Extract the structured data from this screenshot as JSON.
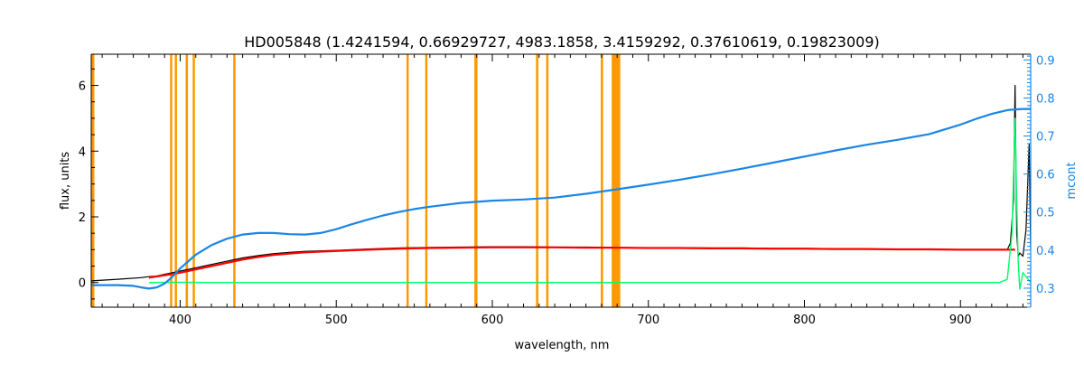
{
  "chart_data": {
    "type": "line",
    "title": "HD005848    (1.4241594, 0.66929727, 4983.1858, 3.4159292, 0.37610619, 0.19823009)",
    "xlabel": "wavelength, nm",
    "ylabel": "flux, units",
    "y2label": "mcont",
    "xlim": [
      343,
      945
    ],
    "ylim": [
      -0.75,
      6.95
    ],
    "y2lim": [
      0.25,
      0.915
    ],
    "xticks": [
      400,
      500,
      600,
      700,
      800,
      900
    ],
    "yticks": [
      0,
      2,
      4,
      6
    ],
    "y2ticks": [
      0.3,
      0.4,
      0.5,
      0.6,
      0.7,
      0.8,
      0.9
    ],
    "grid": false,
    "colors": {
      "observed": "#000000",
      "model": "#ff0000",
      "residual": "#00ff66",
      "mcont": "#1a86e6",
      "masked": "#ff9900",
      "axis": "#000000",
      "axis2": "#1a86e6"
    },
    "masked_regions": [
      [
        343,
        345
      ],
      [
        393.5,
        394.5
      ],
      [
        396.5,
        397.5
      ],
      [
        403.5,
        405
      ],
      [
        408,
        409
      ],
      [
        434,
        435.2
      ],
      [
        545,
        546
      ],
      [
        557,
        558
      ],
      [
        588.5,
        590.5
      ],
      [
        628,
        629.5
      ],
      [
        634.5,
        636
      ],
      [
        669.5,
        671
      ],
      [
        676.5,
        682
      ]
    ],
    "series": [
      {
        "name": "observed",
        "axis": "left",
        "x": [
          343,
          360,
          375,
          380,
          385,
          390,
          395,
          400,
          410,
          420,
          430,
          440,
          450,
          460,
          470,
          480,
          500,
          520,
          540,
          560,
          580,
          600,
          620,
          640,
          660,
          680,
          700,
          720,
          740,
          760,
          780,
          800,
          820,
          840,
          860,
          880,
          900,
          915,
          925,
          930,
          932,
          934,
          935,
          936,
          937,
          938,
          940,
          942,
          944,
          945
        ],
        "y": [
          0.05,
          0.1,
          0.15,
          0.18,
          0.2,
          0.25,
          0.3,
          0.35,
          0.45,
          0.55,
          0.65,
          0.75,
          0.82,
          0.88,
          0.92,
          0.95,
          0.98,
          1.02,
          1.05,
          1.07,
          1.08,
          1.09,
          1.09,
          1.08,
          1.08,
          1.07,
          1.06,
          1.06,
          1.05,
          1.05,
          1.04,
          1.04,
          1.03,
          1.02,
          1.02,
          1.01,
          1.0,
          1.0,
          1.0,
          1.0,
          1.2,
          2.5,
          6.0,
          1.5,
          0.8,
          0.9,
          0.8,
          1.6,
          4.2,
          1.0
        ]
      },
      {
        "name": "model",
        "axis": "left",
        "x": [
          380,
          390,
          400,
          410,
          420,
          430,
          440,
          450,
          460,
          470,
          480,
          500,
          520,
          540,
          560,
          580,
          600,
          620,
          640,
          660,
          680,
          700,
          720,
          740,
          760,
          780,
          800,
          820,
          840,
          860,
          880,
          900,
          920,
          935
        ],
        "y": [
          0.15,
          0.22,
          0.3,
          0.4,
          0.5,
          0.6,
          0.7,
          0.78,
          0.84,
          0.88,
          0.92,
          0.96,
          1.0,
          1.03,
          1.05,
          1.06,
          1.07,
          1.07,
          1.07,
          1.06,
          1.06,
          1.05,
          1.05,
          1.04,
          1.04,
          1.03,
          1.03,
          1.02,
          1.02,
          1.01,
          1.01,
          1.0,
          1.0,
          1.0
        ]
      },
      {
        "name": "residual",
        "axis": "left",
        "x": [
          380,
          400,
          420,
          450,
          500,
          550,
          600,
          650,
          700,
          750,
          800,
          850,
          900,
          925,
          930,
          933,
          935,
          936,
          937,
          938,
          940,
          945
        ],
        "y": [
          0.0,
          0.01,
          0.0,
          0.0,
          0.0,
          0.0,
          0.0,
          0.0,
          0.0,
          0.0,
          0.0,
          0.0,
          0.0,
          0.0,
          0.1,
          1.5,
          5.0,
          2.5,
          0.6,
          -0.2,
          0.3,
          0.0
        ]
      },
      {
        "name": "mcont",
        "axis": "right",
        "x": [
          343,
          360,
          370,
          375,
          380,
          385,
          390,
          395,
          400,
          405,
          410,
          420,
          430,
          440,
          450,
          460,
          470,
          480,
          490,
          500,
          510,
          520,
          530,
          540,
          550,
          560,
          580,
          600,
          620,
          640,
          660,
          680,
          700,
          720,
          740,
          760,
          780,
          800,
          820,
          840,
          860,
          880,
          900,
          910,
          920,
          930,
          935,
          940,
          945
        ],
        "y": [
          0.308,
          0.308,
          0.306,
          0.302,
          0.299,
          0.302,
          0.312,
          0.33,
          0.352,
          0.37,
          0.388,
          0.413,
          0.43,
          0.441,
          0.445,
          0.445,
          0.442,
          0.441,
          0.445,
          0.455,
          0.468,
          0.48,
          0.491,
          0.5,
          0.508,
          0.514,
          0.524,
          0.53,
          0.533,
          0.538,
          0.548,
          0.56,
          0.572,
          0.585,
          0.599,
          0.614,
          0.63,
          0.646,
          0.662,
          0.677,
          0.69,
          0.705,
          0.73,
          0.745,
          0.758,
          0.768,
          0.77,
          0.771,
          0.771
        ]
      }
    ]
  }
}
